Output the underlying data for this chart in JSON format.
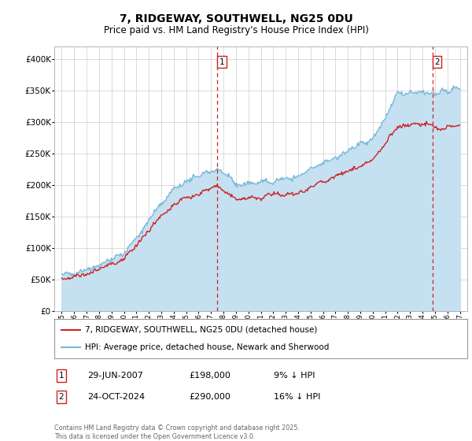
{
  "title": "7, RIDGEWAY, SOUTHWELL, NG25 0DU",
  "subtitle": "Price paid vs. HM Land Registry's House Price Index (HPI)",
  "ylim": [
    0,
    420000
  ],
  "yticks": [
    0,
    50000,
    100000,
    150000,
    200000,
    250000,
    300000,
    350000,
    400000
  ],
  "ytick_labels": [
    "£0",
    "£50K",
    "£100K",
    "£150K",
    "£200K",
    "£250K",
    "£300K",
    "£350K",
    "£400K"
  ],
  "hpi_color": "#7ab8d9",
  "hpi_fill_color": "#c5e0f0",
  "price_color": "#cc2222",
  "vline1_x": 2007.49,
  "vline2_x": 2024.81,
  "sale1_date": "29-JUN-2007",
  "sale1_price": "£198,000",
  "sale1_hpi": "9% ↓ HPI",
  "sale2_date": "24-OCT-2024",
  "sale2_price": "£290,000",
  "sale2_hpi": "16% ↓ HPI",
  "legend1": "7, RIDGEWAY, SOUTHWELL, NG25 0DU (detached house)",
  "legend2": "HPI: Average price, detached house, Newark and Sherwood",
  "copyright": "Contains HM Land Registry data © Crown copyright and database right 2025.\nThis data is licensed under the Open Government Licence v3.0.",
  "background_color": "#ffffff",
  "grid_color": "#cccccc",
  "title_fontsize": 10,
  "subtitle_fontsize": 8.5,
  "tick_fontsize": 7.5,
  "xlim_left": 1994.4,
  "xlim_right": 2027.6
}
